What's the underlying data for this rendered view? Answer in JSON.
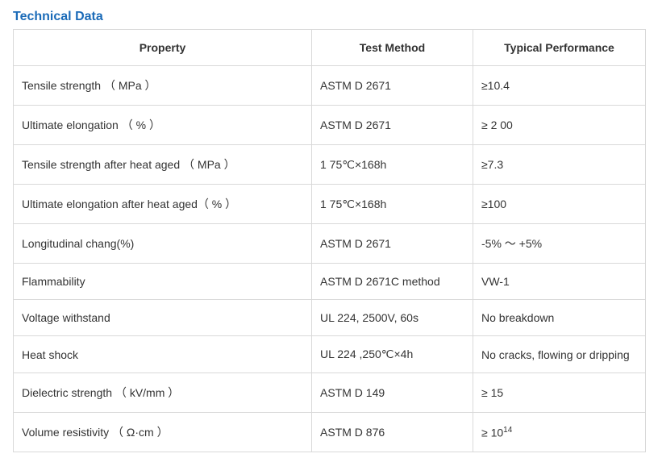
{
  "title": "Technical Data",
  "table": {
    "columns": [
      "Property",
      "Test Method",
      "Typical Performance"
    ],
    "rows": [
      [
        "Tensile strength （ MPa ）",
        "ASTM D 2671",
        "≥10.4"
      ],
      [
        "Ultimate elongation （ % ）",
        "ASTM D 2671",
        "  ≥ 2 00"
      ],
      [
        "Tensile strength after heat aged （ MPa ）",
        "1 75℃×168h",
        "≥7.3"
      ],
      [
        "Ultimate elongation after heat aged（ % ）",
        "1 75℃×168h",
        "≥100"
      ],
      [
        "Longitudinal chang(%)",
        "ASTM D 2671",
        "-5% ～ +5%"
      ],
      [
        "Flammability",
        "ASTM D 2671C method",
        "VW-1"
      ],
      [
        "Voltage withstand",
        "UL 224, 2500V, 60s",
        "No breakdown"
      ],
      [
        "Heat shock",
        "UL 224 ,250℃×4h",
        "No cracks, flowing or dripping"
      ],
      [
        "Dielectric strength （ kV/mm ）",
        "ASTM D 149",
        "≥ 15"
      ],
      [
        "Volume resistivity （ Ω·cm ）",
        "ASTM D 876",
        "≥ 10<sup>14</sup>"
      ]
    ],
    "border_color": "#d9d9d9",
    "header_bg": "#ffffff",
    "font_size": 14,
    "title_color": "#1b6bb8"
  }
}
